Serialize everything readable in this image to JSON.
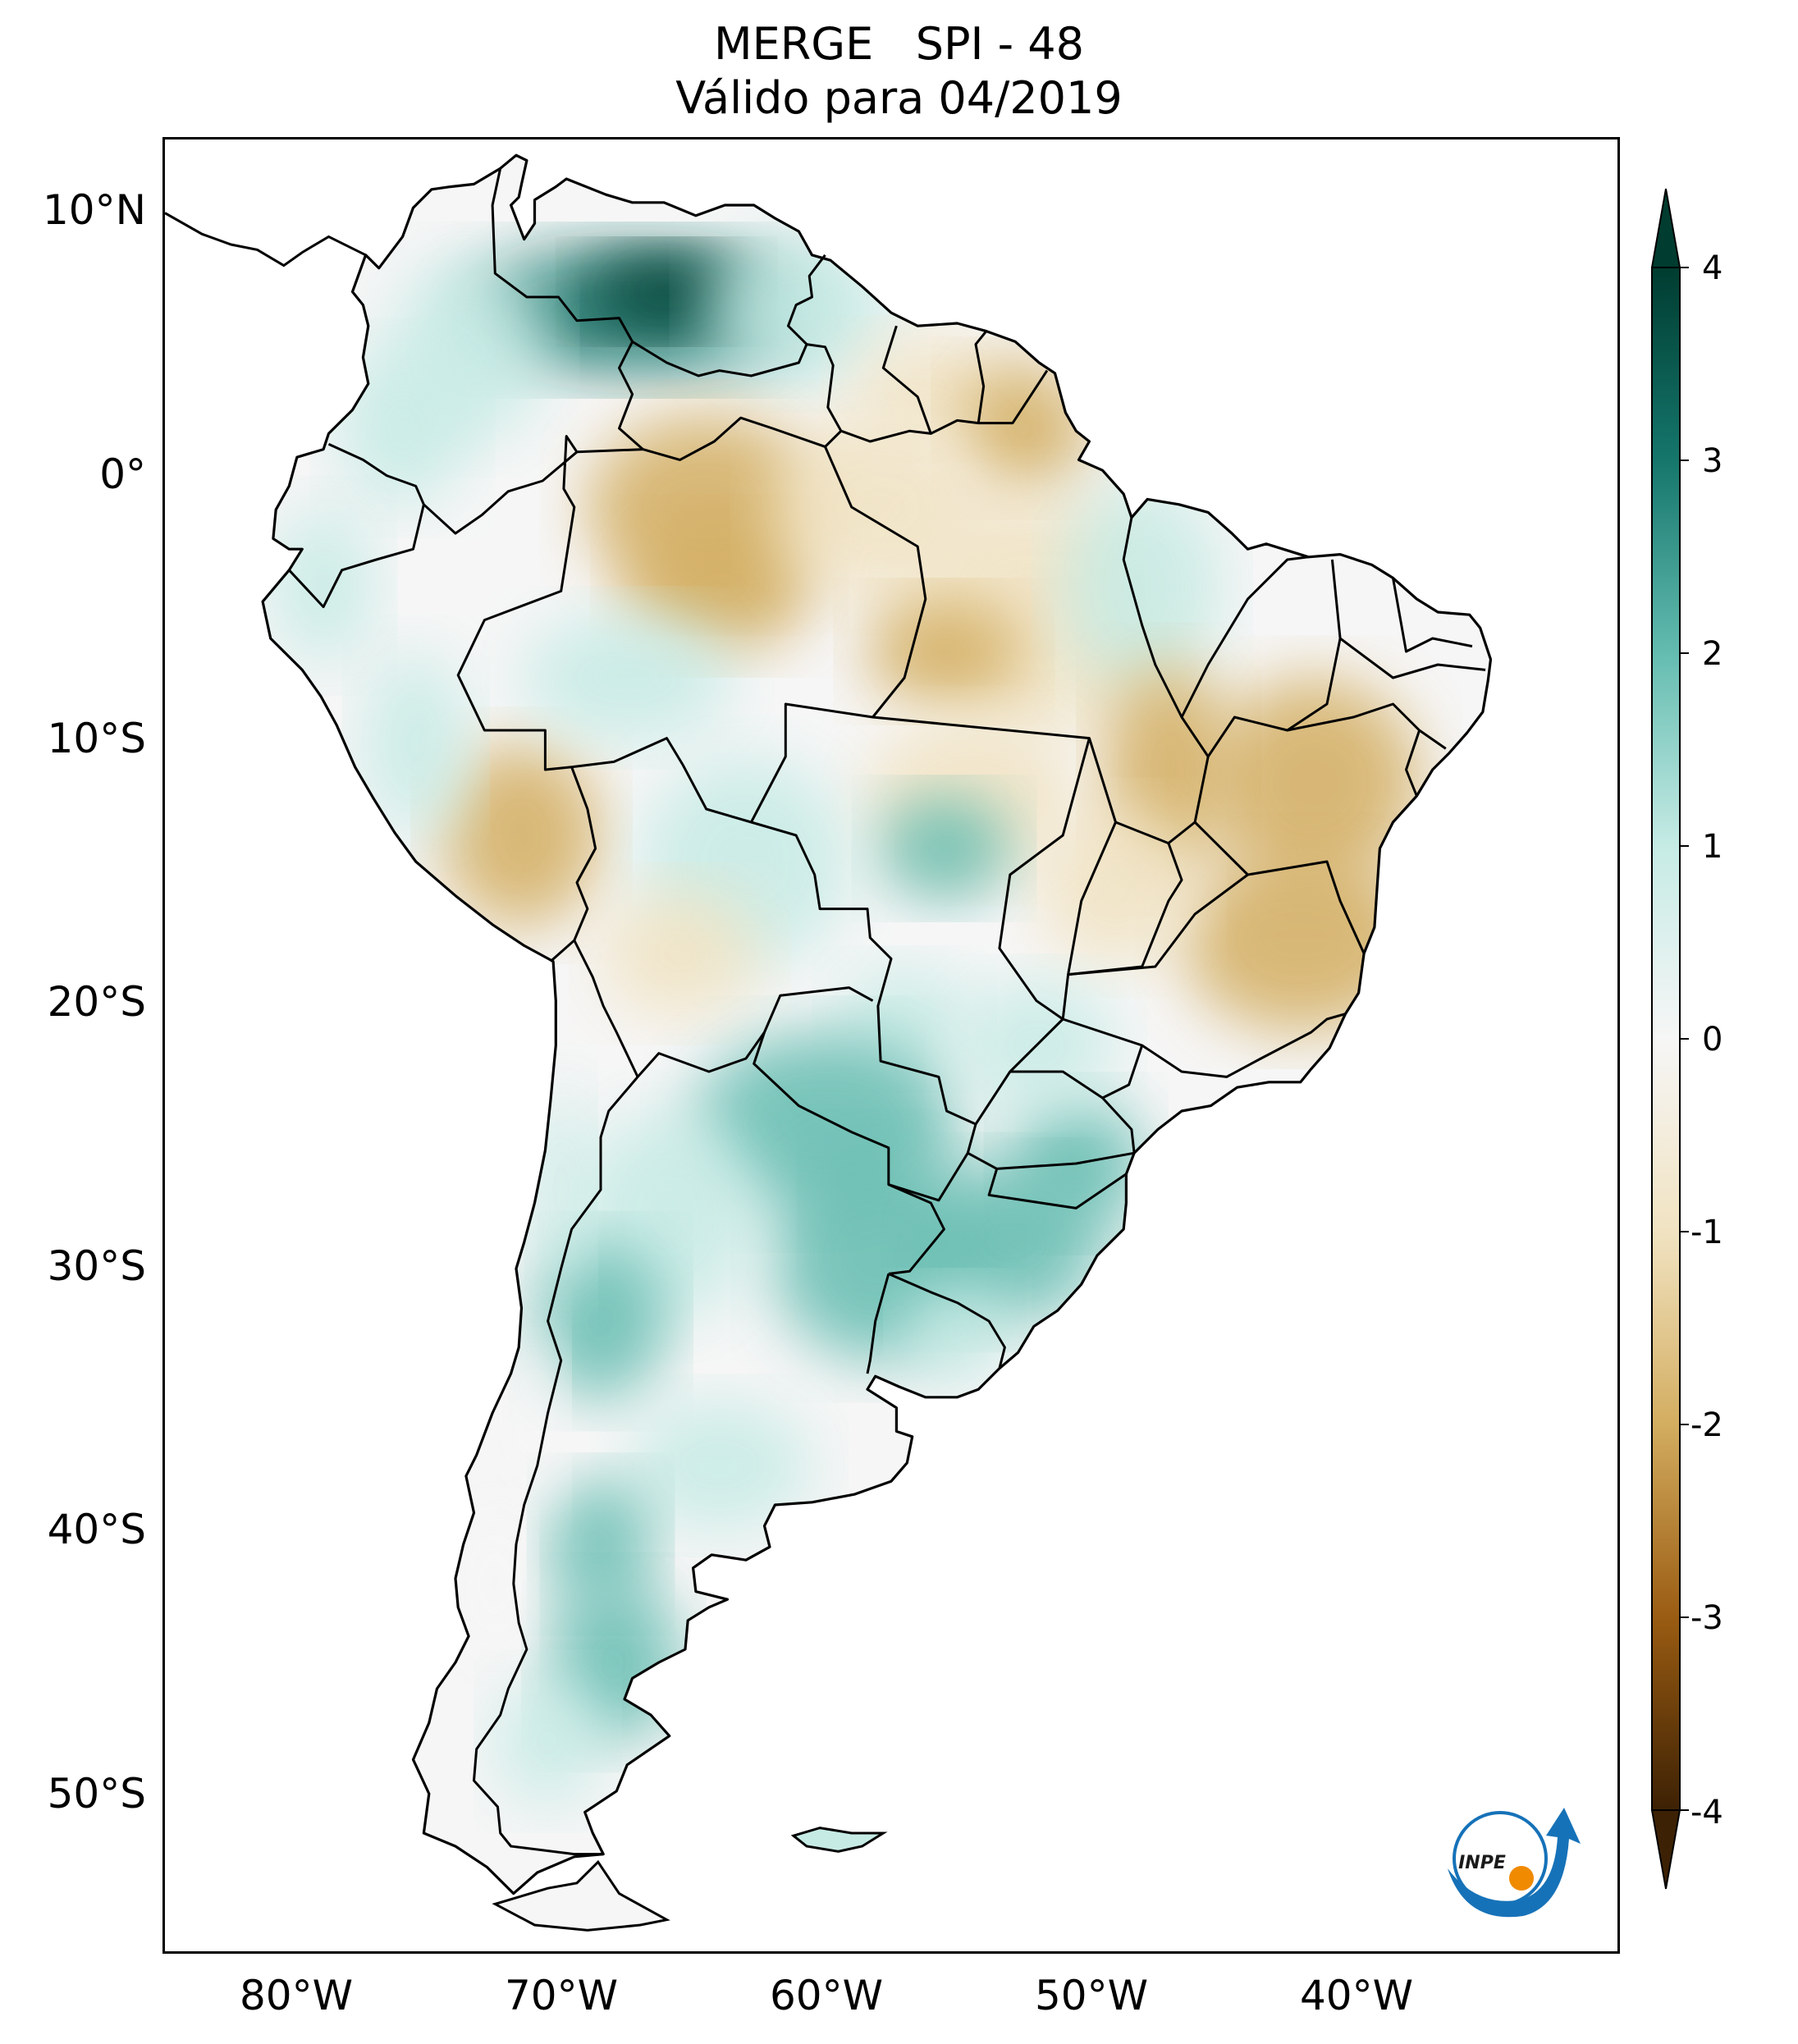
{
  "title": {
    "line1": "MERGE   SPI - 48",
    "line2": "Válido para 04/2019"
  },
  "map": {
    "projection": "plate-carree",
    "lon_range": [
      -85,
      -30
    ],
    "lat_range": [
      -56,
      13
    ],
    "lat_ticks": [
      {
        "value": 10,
        "label": "10°N"
      },
      {
        "value": 0,
        "label": "0°"
      },
      {
        "value": -10,
        "label": "10°S"
      },
      {
        "value": -20,
        "label": "20°S"
      },
      {
        "value": -30,
        "label": "30°S"
      },
      {
        "value": -40,
        "label": "40°S"
      },
      {
        "value": -50,
        "label": "50°S"
      }
    ],
    "lon_ticks": [
      {
        "value": -80,
        "label": "80°W"
      },
      {
        "value": -70,
        "label": "70°W"
      },
      {
        "value": -60,
        "label": "60°W"
      },
      {
        "value": -50,
        "label": "50°W"
      },
      {
        "value": -40,
        "label": "40°W"
      }
    ],
    "grid": false
  },
  "colorbar": {
    "colormap": "BrBG",
    "range": [
      -4,
      4
    ],
    "extend": "both",
    "orientation": "vertical",
    "placement": "right",
    "ticks": [
      {
        "value": 4,
        "label": "4"
      },
      {
        "value": 3,
        "label": "3"
      },
      {
        "value": 2,
        "label": "2"
      },
      {
        "value": 1,
        "label": "1"
      },
      {
        "value": 0,
        "label": "0"
      },
      {
        "value": -1,
        "label": "-1"
      },
      {
        "value": -2,
        "label": "-2"
      },
      {
        "value": -3,
        "label": "-3"
      },
      {
        "value": -4,
        "label": "-4"
      }
    ],
    "colors": {
      "dry_extreme": "#3d2104",
      "dry_strong": "#9a5c12",
      "dry_moderate": "#d3ad60",
      "dry_light": "#f1e3c2",
      "neutral": "#f6f6f6",
      "wet_light": "#c6ebe5",
      "wet_moderate": "#64bcb0",
      "wet_strong": "#15766c",
      "wet_extreme": "#003c30"
    }
  },
  "regions": [
    {
      "name": "venezuela-orinoco",
      "spi_class": "wet_strong"
    },
    {
      "name": "guiana-shield",
      "spi_class": "wet_light"
    },
    {
      "name": "northern-amazon",
      "spi_class": "dry_moderate"
    },
    {
      "name": "central-brazil",
      "spi_class": "dry_light"
    },
    {
      "name": "eastern-brazil",
      "spi_class": "dry_moderate"
    },
    {
      "name": "peru-andes",
      "spi_class": "dry_moderate"
    },
    {
      "name": "bolivia-lowlands",
      "spi_class": "wet_light"
    },
    {
      "name": "paraguay-northeast-argentina",
      "spi_class": "wet_moderate"
    },
    {
      "name": "southern-brazil",
      "spi_class": "wet_moderate"
    },
    {
      "name": "central-argentina",
      "spi_class": "wet_light"
    },
    {
      "name": "patagonia",
      "spi_class": "wet_moderate"
    },
    {
      "name": "chile-coast",
      "spi_class": "neutral"
    }
  ],
  "logo": {
    "text": "INPE",
    "colors": {
      "arc": "#1672b8",
      "dot": "#f08a00"
    }
  }
}
